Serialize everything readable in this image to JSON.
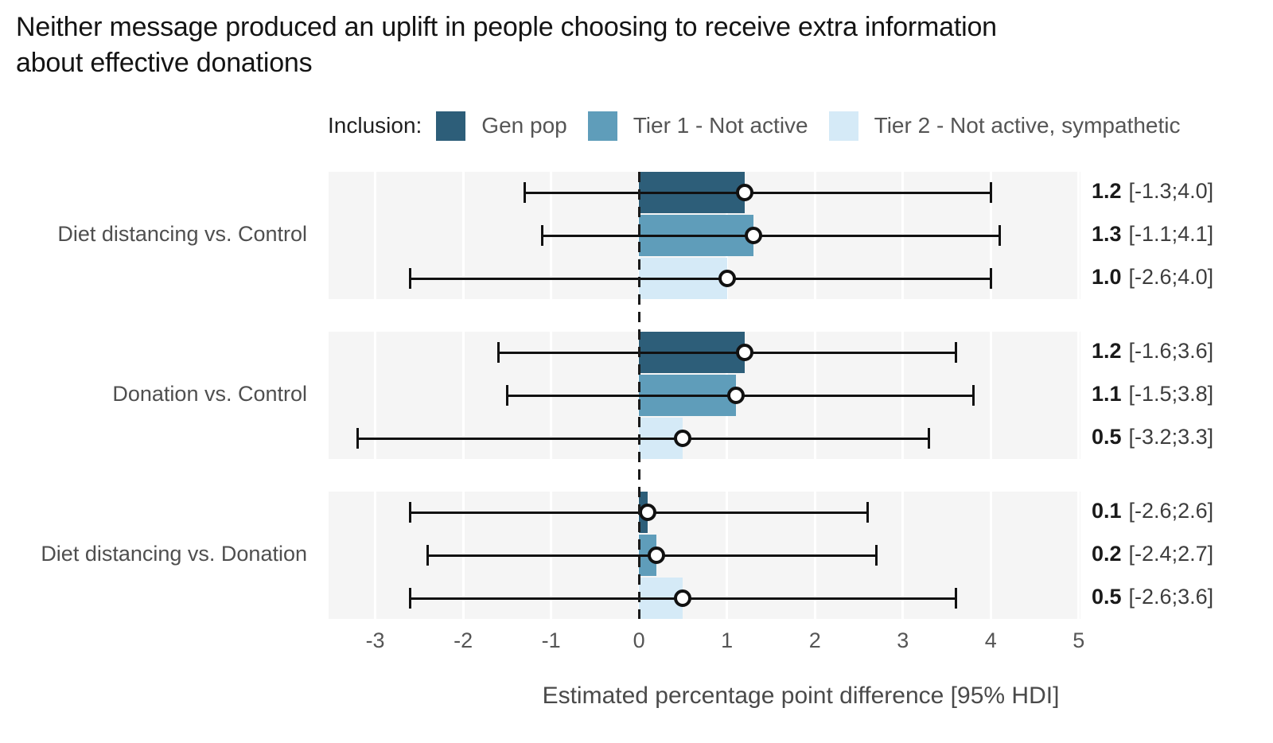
{
  "title": "Neither message produced an uplift in people choosing to receive extra information about effective donations",
  "legend": {
    "label": "Inclusion:",
    "items": [
      {
        "name": "Gen pop",
        "color": "#2d5e79"
      },
      {
        "name": "Tier 1 - Not active",
        "color": "#5f9dba"
      },
      {
        "name": "Tier 2 - Not active, sympathetic",
        "color": "#d5eaf7"
      }
    ]
  },
  "colors": {
    "panel_bg": "#f5f5f5",
    "gridline": "#ffffff",
    "error_bar": "#111111",
    "zero_line": "#1a1a1a",
    "title_text": "#141414",
    "muted_text": "#555555"
  },
  "chart_data": {
    "type": "bar",
    "orientation": "horizontal",
    "title": "Neither message produced an uplift in people choosing to receive extra information about effective donations",
    "xlabel": "Estimated percentage point difference [95% HDI]",
    "ylabel": "",
    "x_ticks": [
      -3,
      -2,
      -1,
      0,
      1,
      2,
      3,
      4,
      5
    ],
    "xlim": [
      -3.53,
      5.02
    ],
    "grid": true,
    "legend_position": "top",
    "zero_reference_line": 0,
    "series_order": [
      "Gen pop",
      "Tier 1 - Not active",
      "Tier 2 - Not active, sympathetic"
    ],
    "groups": [
      {
        "label": "Diet distancing vs. Control",
        "rows": [
          {
            "series": "Gen pop",
            "value": 1.2,
            "ci_low": -1.3,
            "ci_high": 4.0,
            "value_text": "1.2",
            "interval_text": "[-1.3;4.0]"
          },
          {
            "series": "Tier 1 - Not active",
            "value": 1.3,
            "ci_low": -1.1,
            "ci_high": 4.1,
            "value_text": "1.3",
            "interval_text": "[-1.1;4.1]"
          },
          {
            "series": "Tier 2 - Not active, sympathetic",
            "value": 1.0,
            "ci_low": -2.6,
            "ci_high": 4.0,
            "value_text": "1.0",
            "interval_text": "[-2.6;4.0]"
          }
        ]
      },
      {
        "label": "Donation vs. Control",
        "rows": [
          {
            "series": "Gen pop",
            "value": 1.2,
            "ci_low": -1.6,
            "ci_high": 3.6,
            "value_text": "1.2",
            "interval_text": "[-1.6;3.6]"
          },
          {
            "series": "Tier 1 - Not active",
            "value": 1.1,
            "ci_low": -1.5,
            "ci_high": 3.8,
            "value_text": "1.1",
            "interval_text": "[-1.5;3.8]"
          },
          {
            "series": "Tier 2 - Not active, sympathetic",
            "value": 0.5,
            "ci_low": -3.2,
            "ci_high": 3.3,
            "value_text": "0.5",
            "interval_text": "[-3.2;3.3]"
          }
        ]
      },
      {
        "label": "Diet distancing vs. Donation",
        "rows": [
          {
            "series": "Gen pop",
            "value": 0.1,
            "ci_low": -2.6,
            "ci_high": 2.6,
            "value_text": "0.1",
            "interval_text": "[-2.6;2.6]"
          },
          {
            "series": "Tier 1 - Not active",
            "value": 0.2,
            "ci_low": -2.4,
            "ci_high": 2.7,
            "value_text": "0.2",
            "interval_text": "[-2.4;2.7]"
          },
          {
            "series": "Tier 2 - Not active, sympathetic",
            "value": 0.5,
            "ci_low": -2.6,
            "ci_high": 3.6,
            "value_text": "0.5",
            "interval_text": "[-2.6;3.6]"
          }
        ]
      }
    ]
  }
}
